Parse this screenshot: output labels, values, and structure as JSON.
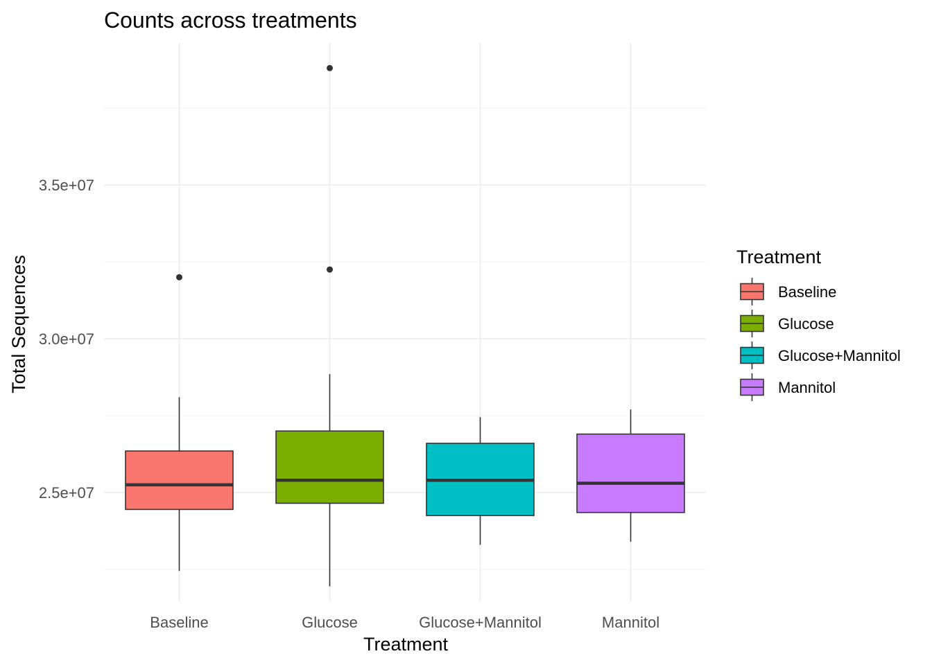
{
  "chart_data": {
    "type": "boxplot",
    "title": "Counts across treatments",
    "xlabel": "Treatment",
    "ylabel": "Total Sequences",
    "ylim": [
      21500000,
      40000000
    ],
    "y_ticks": [
      25000000,
      30000000,
      35000000
    ],
    "y_tick_labels": [
      "2.5e+07",
      "3.0e+07",
      "3.5e+07"
    ],
    "y_minor_ticks": [
      22500000,
      27500000,
      32500000,
      37500000
    ],
    "grid": true,
    "legend": {
      "title": "Treatment",
      "position": "right"
    },
    "series": [
      {
        "name": "Baseline",
        "color": "#F8766D",
        "whisker_low": 22450000,
        "q1": 24450000,
        "median": 25250000,
        "q3": 26350000,
        "whisker_high": 28100000,
        "outliers": [
          32000000
        ]
      },
      {
        "name": "Glucose",
        "color": "#7CAE00",
        "whisker_low": 21950000,
        "q1": 24650000,
        "median": 25400000,
        "q3": 27000000,
        "whisker_high": 28850000,
        "outliers": [
          32250000,
          38800000
        ]
      },
      {
        "name": "Glucose+Mannitol",
        "color": "#00BFC4",
        "whisker_low": 23300000,
        "q1": 24250000,
        "median": 25400000,
        "q3": 26600000,
        "whisker_high": 27450000,
        "outliers": []
      },
      {
        "name": "Mannitol",
        "color": "#C77CFF",
        "whisker_low": 23400000,
        "q1": 24350000,
        "median": 25300000,
        "q3": 26900000,
        "whisker_high": 27700000,
        "outliers": []
      }
    ]
  }
}
